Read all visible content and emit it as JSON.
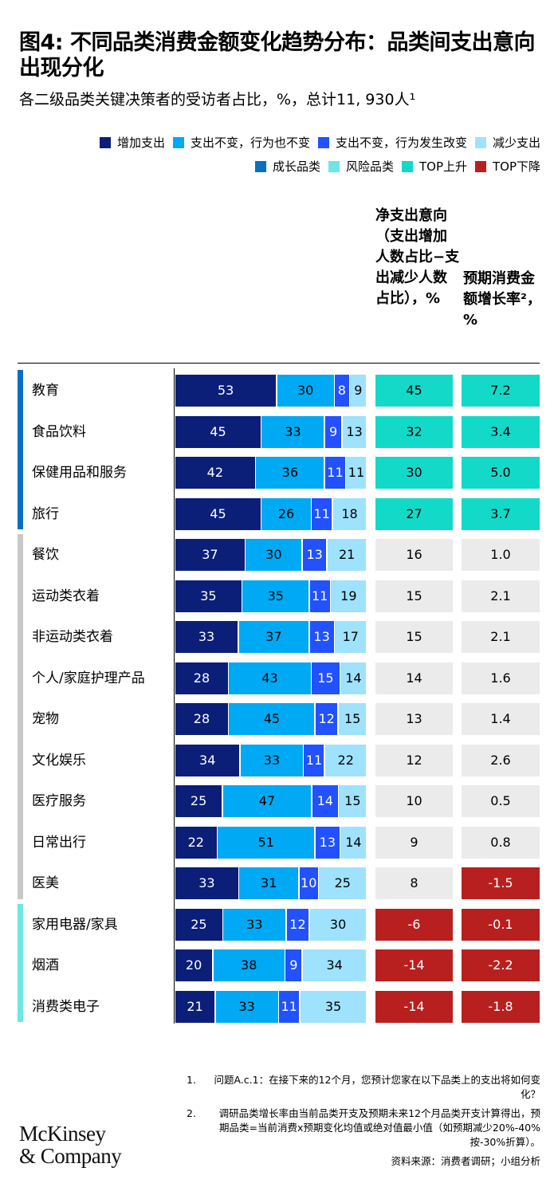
{
  "title": "图4: 不同品类消费金额变化趋势分布：品类间支出意向出现分化",
  "subtitle": "各二级品类关键决策者的受访者占比，%，总计11, 930人¹",
  "legend_row1": [
    {
      "label": "增加支出",
      "color": "#0b1f78"
    },
    {
      "label": "支出不变，行为也不变",
      "color": "#00a9f4"
    },
    {
      "label": "支出不变，行为发生改变",
      "color": "#2251ff"
    },
    {
      "label": "减少支出",
      "color": "#9fe2fd"
    }
  ],
  "legend_row2": [
    {
      "label": "成长品类",
      "color": "#0a6fc0"
    },
    {
      "label": "风险品类",
      "color": "#6de6e4"
    },
    {
      "label": "TOP上升",
      "color": "#13d9c8"
    },
    {
      "label": "TOP下降",
      "color": "#b8201f"
    }
  ],
  "columns": {
    "net": "净支出意向（支出增加人数占比−支出减少人数占比），%",
    "growth": "预期消费金额增长率²，%"
  },
  "colors": {
    "growth_group": "#0a6fc0",
    "neutral_group": "#c8c8c8",
    "risk_group": "#6de6e4",
    "top_up": "#13d9c8",
    "top_down": "#b8201f",
    "neutral_box": "#ebebeb"
  },
  "chart_data": {
    "type": "bar",
    "stacked": true,
    "orientation": "horizontal",
    "series_names": [
      "增加支出",
      "支出不变，行为也不变",
      "支出不变，行为发生改变",
      "减少支出"
    ],
    "rows": [
      {
        "category": "教育",
        "group": "成长品类",
        "values": [
          53,
          30,
          8,
          9
        ],
        "net": "45",
        "growth": "7.2",
        "net_status": "up",
        "growth_status": "up"
      },
      {
        "category": "食品饮料",
        "group": "成长品类",
        "values": [
          45,
          33,
          9,
          13
        ],
        "net": "32",
        "growth": "3.4",
        "net_status": "up",
        "growth_status": "up"
      },
      {
        "category": "保健用品和服务",
        "group": "成长品类",
        "values": [
          42,
          36,
          11,
          11
        ],
        "net": "30",
        "growth": "5.0",
        "net_status": "up",
        "growth_status": "up"
      },
      {
        "category": "旅行",
        "group": "成长品类",
        "values": [
          45,
          26,
          11,
          18
        ],
        "net": "27",
        "growth": "3.7",
        "net_status": "up",
        "growth_status": "up"
      },
      {
        "category": "餐饮",
        "group": "",
        "values": [
          37,
          30,
          13,
          21
        ],
        "net": "16",
        "growth": "1.0",
        "net_status": "",
        "growth_status": ""
      },
      {
        "category": "运动类衣着",
        "group": "",
        "values": [
          35,
          35,
          11,
          19
        ],
        "net": "15",
        "growth": "2.1",
        "net_status": "",
        "growth_status": ""
      },
      {
        "category": "非运动类衣着",
        "group": "",
        "values": [
          33,
          37,
          13,
          17
        ],
        "net": "15",
        "growth": "2.1",
        "net_status": "",
        "growth_status": ""
      },
      {
        "category": "个人/家庭护理产品",
        "group": "",
        "values": [
          28,
          43,
          15,
          14
        ],
        "net": "14",
        "growth": "1.6",
        "net_status": "",
        "growth_status": ""
      },
      {
        "category": "宠物",
        "group": "",
        "values": [
          28,
          45,
          12,
          15
        ],
        "net": "13",
        "growth": "1.4",
        "net_status": "",
        "growth_status": ""
      },
      {
        "category": "文化娱乐",
        "group": "",
        "values": [
          34,
          33,
          11,
          22
        ],
        "net": "12",
        "growth": "2.6",
        "net_status": "",
        "growth_status": ""
      },
      {
        "category": "医疗服务",
        "group": "",
        "values": [
          25,
          47,
          14,
          15
        ],
        "net": "10",
        "growth": "0.5",
        "net_status": "",
        "growth_status": ""
      },
      {
        "category": "日常出行",
        "group": "",
        "values": [
          22,
          51,
          13,
          14
        ],
        "net": "9",
        "growth": "0.8",
        "net_status": "",
        "growth_status": ""
      },
      {
        "category": "医美",
        "group": "",
        "values": [
          33,
          31,
          10,
          25
        ],
        "net": "8",
        "growth": "-1.5",
        "net_status": "",
        "growth_status": "down"
      },
      {
        "category": "家用电器/家具",
        "group": "风险品类",
        "values": [
          25,
          33,
          12,
          30
        ],
        "net": "-6",
        "growth": "-0.1",
        "net_status": "down",
        "growth_status": "down"
      },
      {
        "category": "烟酒",
        "group": "风险品类",
        "values": [
          20,
          38,
          9,
          34
        ],
        "net": "-14",
        "growth": "-2.2",
        "net_status": "down",
        "growth_status": "down"
      },
      {
        "category": "消费类电子",
        "group": "风险品类",
        "values": [
          21,
          33,
          11,
          35
        ],
        "net": "-14",
        "growth": "-1.8",
        "net_status": "down",
        "growth_status": "down"
      }
    ]
  },
  "notes": [
    {
      "num": "1.",
      "text": "问题A.c.1：在接下来的12个月，您预计您家在以下品类上的支出将如何变化？"
    },
    {
      "num": "2.",
      "text": "调研品类增长率由当前品类开支及预期未来12个月品类开支计算得出，预期品类=当前消费x预期变化均值或绝对值最小值（如预期减少20%-40%按-30%折算）。"
    }
  ],
  "source": "资料来源：消费者调研；小组分析",
  "logo": {
    "line1": "McKinsey",
    "line2": "& Company"
  }
}
